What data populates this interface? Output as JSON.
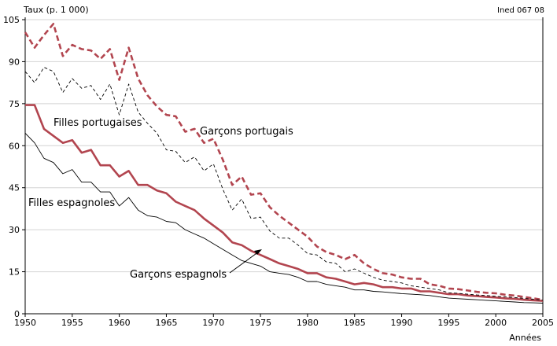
{
  "chart_data": {
    "type": "line",
    "ylabel": "Taux (p. 1 000)",
    "xlabel": "Années",
    "source_note": "Ined 067 08",
    "xlim": [
      1950,
      2005
    ],
    "ylim": [
      0,
      105
    ],
    "x_ticks": [
      1950,
      1955,
      1960,
      1965,
      1970,
      1975,
      1980,
      1985,
      1990,
      1995,
      2000,
      2005
    ],
    "y_ticks": [
      0,
      15,
      30,
      45,
      60,
      75,
      90,
      105
    ],
    "grid": "horizontal",
    "colors": {
      "portugal": "#b2454f",
      "spain": "#000000"
    },
    "annotations": [
      {
        "series": "Filles portugaises",
        "text": "Filles portugaises"
      },
      {
        "series": "Garçons portugais",
        "text": "Garçons portugais"
      },
      {
        "series": "Filles espagnoles",
        "text": "Filles espagnoles"
      },
      {
        "series": "Garçons espagnols",
        "text": "Garçons espagnols"
      }
    ],
    "x": [
      1950,
      1951,
      1952,
      1953,
      1954,
      1955,
      1956,
      1957,
      1958,
      1959,
      1960,
      1961,
      1962,
      1963,
      1964,
      1965,
      1966,
      1967,
      1968,
      1969,
      1970,
      1971,
      1972,
      1973,
      1974,
      1975,
      1976,
      1977,
      1978,
      1979,
      1980,
      1981,
      1982,
      1983,
      1984,
      1985,
      1986,
      1987,
      1988,
      1989,
      1990,
      1991,
      1992,
      1993,
      1994,
      1995,
      1996,
      1997,
      1998,
      1999,
      2000,
      2001,
      2002,
      2003,
      2004,
      2005
    ],
    "series": [
      {
        "name": "Garçons portugais",
        "style": "thick-dashed",
        "values": [
          100.5,
          95,
          99.5,
          103.5,
          92,
          96,
          94.5,
          94,
          91,
          94.5,
          83.5,
          95,
          84,
          78,
          74,
          71,
          70.5,
          65,
          66,
          61,
          62.5,
          55,
          46,
          49,
          42.5,
          43,
          38,
          35,
          32.5,
          30,
          27.5,
          24,
          22,
          21,
          19.5,
          21,
          18,
          16,
          14.5,
          14,
          13,
          12.5,
          12.5,
          10.5,
          10,
          9,
          8.8,
          8.3,
          7.8,
          7.5,
          7.3,
          6.8,
          6.5,
          6,
          5.5,
          5
        ]
      },
      {
        "name": "Filles portugaises",
        "style": "thick-solid",
        "values": [
          74.5,
          74.5,
          66,
          63.5,
          61,
          62,
          57.5,
          58.5,
          53,
          53,
          49,
          51,
          46,
          46,
          44,
          43,
          40,
          38.5,
          37,
          34,
          31.5,
          29,
          25.5,
          24.5,
          22.5,
          21,
          19.5,
          18,
          17,
          16,
          14.5,
          14.5,
          13,
          12.5,
          11.5,
          10.5,
          11,
          10.5,
          9.5,
          9.5,
          9,
          9,
          8,
          8,
          7.5,
          7,
          7,
          6.5,
          6.3,
          6,
          5.8,
          5.5,
          5.3,
          5,
          4.8,
          4.6
        ]
      },
      {
        "name": "Garçons espagnols",
        "style": "thin-dashed",
        "values": [
          86.5,
          82.5,
          88,
          86.5,
          79,
          84,
          80.5,
          81.5,
          76.5,
          82,
          71,
          82,
          72,
          68,
          64.5,
          58.5,
          58,
          54,
          56,
          51,
          53.5,
          44.5,
          37,
          41,
          34,
          34.5,
          29.5,
          27,
          27,
          24.5,
          21.5,
          21,
          18.5,
          18,
          15,
          16,
          14.5,
          13,
          12,
          11.5,
          11,
          10,
          9.5,
          9,
          8.5,
          7.5,
          7.3,
          7,
          6.7,
          6.5,
          6.2,
          6,
          5.8,
          5.5,
          5.2,
          4.8
        ]
      },
      {
        "name": "Filles espagnoles",
        "style": "thin-solid",
        "values": [
          64.5,
          61,
          55.5,
          54,
          50,
          51.5,
          47,
          47,
          43.5,
          43.5,
          38.5,
          41.5,
          37,
          35,
          34.5,
          33,
          32.5,
          30,
          28.5,
          27,
          25,
          23,
          21,
          19,
          18,
          17,
          15,
          14.5,
          14,
          13,
          11.5,
          11.5,
          10.5,
          10,
          9.5,
          8.5,
          8.5,
          8,
          7.8,
          7.5,
          7.2,
          7,
          6.8,
          6.5,
          6,
          5.6,
          5.4,
          5.2,
          5,
          4.8,
          4.6,
          4.4,
          4.2,
          4,
          3.9,
          3.8
        ]
      }
    ]
  }
}
